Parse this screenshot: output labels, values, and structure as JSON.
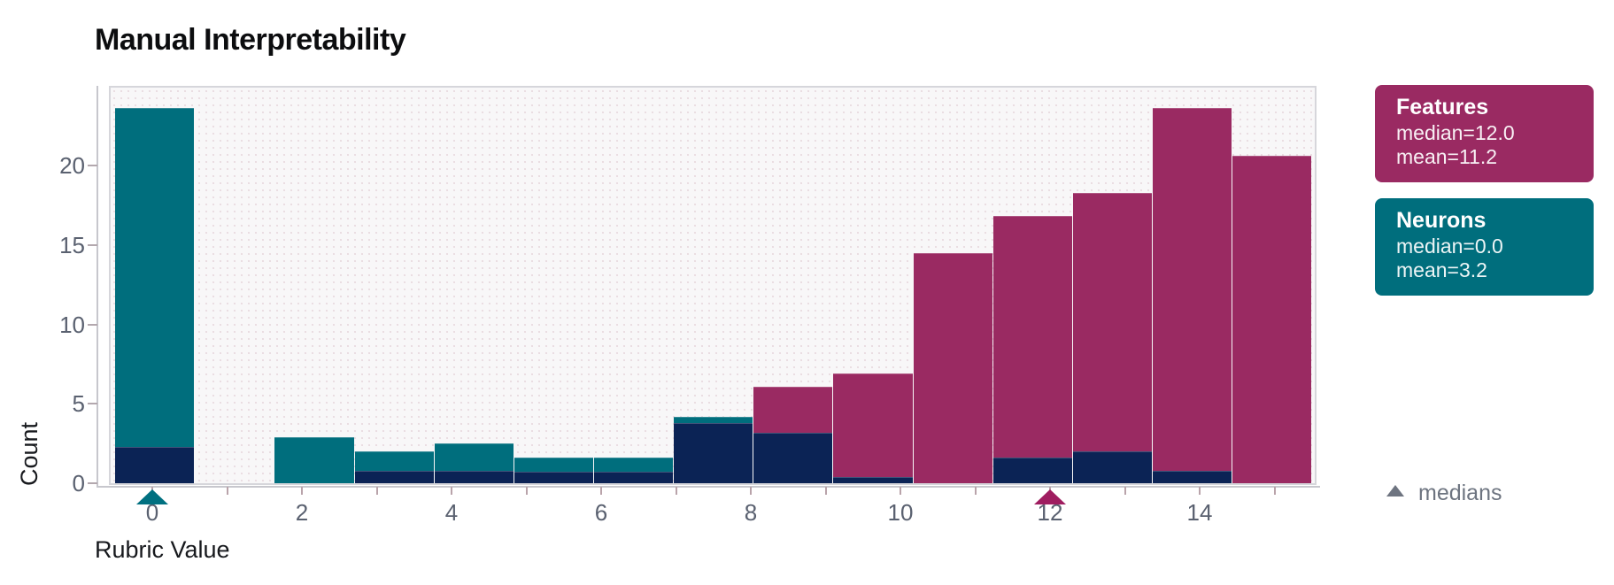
{
  "chart_data": {
    "type": "bar",
    "subtype": "overlaid_histogram",
    "title": "Manual Interpretability",
    "xlabel": "Rubric Value",
    "ylabel": "Count",
    "grid": false,
    "legend_position": "right-outside",
    "plot_background": "#f8f7f8",
    "overlap_color": "#0b2355",
    "xlim": [
      -0.58,
      15.56
    ],
    "ylim": [
      0,
      25
    ],
    "x_ticks": [
      0,
      2,
      4,
      6,
      8,
      10,
      12,
      14
    ],
    "x_minor_ticks": [
      0,
      1,
      2,
      3,
      4,
      5,
      6,
      7,
      8,
      9,
      10,
      11,
      12,
      13,
      14,
      15
    ],
    "y_ticks": [
      0,
      5,
      10,
      15,
      20
    ],
    "bin_edges": [
      -0.5,
      0.567,
      1.633,
      2.7,
      3.767,
      4.833,
      5.9,
      6.967,
      8.033,
      9.1,
      10.167,
      11.233,
      12.3,
      13.367,
      14.433,
      15.5
    ],
    "series": [
      {
        "name": "Features",
        "color": "#9a2a62",
        "median": 12.0,
        "mean": 11.2,
        "counts": [
          2.3,
          0,
          0,
          0.8,
          0.8,
          0.7,
          0.7,
          3.8,
          6.1,
          6.9,
          14.5,
          16.8,
          18.3,
          23.6,
          20.6
        ]
      },
      {
        "name": "Neurons",
        "color": "#006e7d",
        "median": 0.0,
        "mean": 3.2,
        "counts": [
          23.6,
          0,
          2.9,
          2.0,
          2.5,
          1.6,
          1.6,
          4.2,
          3.2,
          0.4,
          0,
          1.6,
          2.0,
          0.8,
          0
        ]
      }
    ],
    "median_markers": [
      {
        "series": "Neurons",
        "value": 0,
        "color": "#007080"
      },
      {
        "series": "Features",
        "value": 12,
        "color": "#9f1d60"
      }
    ],
    "medians_marker_color": "#6e7480"
  },
  "legend": {
    "features": {
      "title": "Features",
      "median_line": "median=12.0",
      "mean_line": "mean=11.2"
    },
    "neurons": {
      "title": "Neurons",
      "median_line": "median=0.0",
      "mean_line": "mean=3.2"
    },
    "medians_label": "medians"
  }
}
